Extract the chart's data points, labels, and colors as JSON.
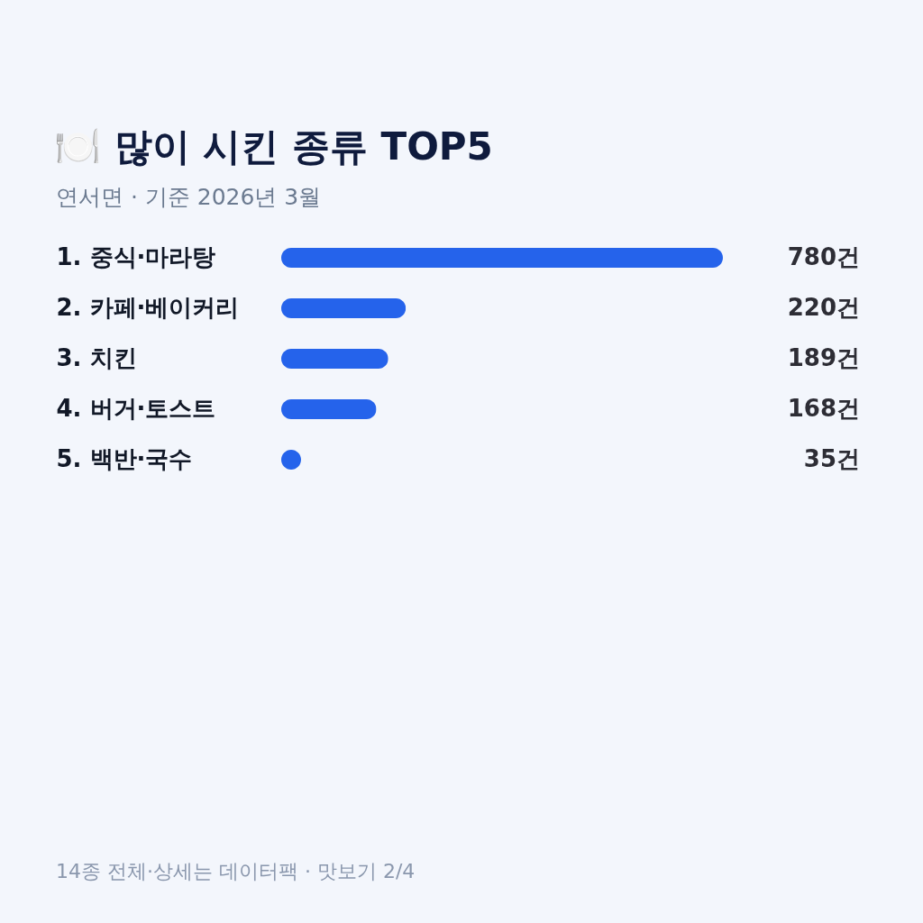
{
  "chart_data": {
    "type": "bar",
    "orientation": "horizontal",
    "title": "🍽️ 많이 시킨 종류 TOP5",
    "subtitle": "연서면 · 기준 2026년 3월",
    "categories": [
      "1. 중식·마라탕",
      "2. 카페·베이커리",
      "3. 치킨",
      "4. 버거·토스트",
      "5. 백반·국수"
    ],
    "values": [
      780,
      220,
      189,
      168,
      35
    ],
    "value_labels": [
      "780건",
      "220건",
      "189건",
      "168건",
      "35건"
    ],
    "color": "#2563eb",
    "grid": false,
    "annotations": [
      "14종 전체·상세는 데이터팩 · 맛보기 2/4"
    ]
  }
}
